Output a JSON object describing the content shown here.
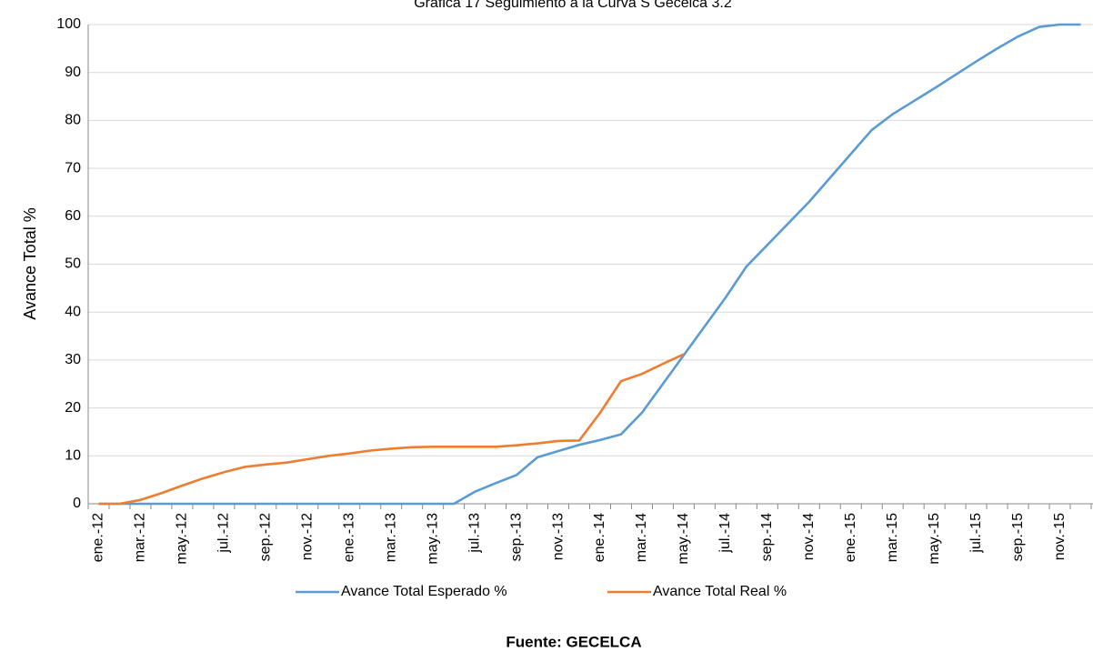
{
  "chart_data": {
    "type": "line",
    "title": "Grafica 17 Seguimiento a la Curva S Gecelca 3.2",
    "y_label": "Avance Total %",
    "source": "Fuente: GECELCA",
    "categories": [
      "ene.-12",
      null,
      "mar.-12",
      null,
      "may.-12",
      null,
      "jul.-12",
      null,
      "sep.-12",
      null,
      "nov.-12",
      null,
      "ene.-13",
      null,
      "mar.-13",
      null,
      "may.-13",
      null,
      "jul.-13",
      null,
      "sep.-13",
      null,
      "nov.-13",
      null,
      "ene.-14",
      null,
      "mar.-14",
      null,
      "may.-14",
      null,
      "jul.-14",
      null,
      "sep.-14",
      null,
      "nov.-14",
      null,
      "ene.-15",
      null,
      "mar.-15",
      null,
      "may.-15",
      null,
      "jul.-15",
      null,
      "sep.-15",
      null,
      "nov.-15",
      null
    ],
    "series": [
      {
        "name": "Avance Total Esperado %",
        "color": "#5b9bd5",
        "values": [
          0,
          0,
          0,
          0,
          0,
          0,
          0,
          0,
          0,
          0,
          0,
          0,
          0,
          0,
          0,
          0,
          0,
          0,
          2.5,
          4.3,
          6.0,
          9.7,
          11.0,
          12.3,
          13.3,
          14.5,
          19,
          25,
          31,
          37,
          43,
          49.5,
          54,
          58.5,
          63,
          68,
          73,
          78,
          81.3,
          84,
          86.7,
          89.5,
          92.3,
          95,
          97.5,
          99.5,
          100,
          100
        ]
      },
      {
        "name": "Avance Total Real %",
        "color": "#ed7d31",
        "values": [
          0,
          0,
          0.8,
          2.2,
          3.8,
          5.3,
          6.6,
          7.7,
          8.2,
          8.6,
          9.3,
          10.0,
          10.5,
          11.1,
          11.5,
          11.8,
          11.9,
          11.9,
          11.9,
          11.9,
          12.2,
          12.6,
          13.1,
          13.2,
          19,
          25.6,
          27.1,
          29.2,
          31.2,
          null,
          null,
          null,
          null,
          null,
          null,
          null,
          null,
          null,
          null,
          null,
          null,
          null,
          null,
          null,
          null,
          null,
          null,
          null
        ]
      }
    ],
    "ylim": [
      0,
      100
    ],
    "yticks": [
      0,
      10,
      20,
      30,
      40,
      50,
      60,
      70,
      80,
      90,
      100
    ],
    "grid": true
  }
}
